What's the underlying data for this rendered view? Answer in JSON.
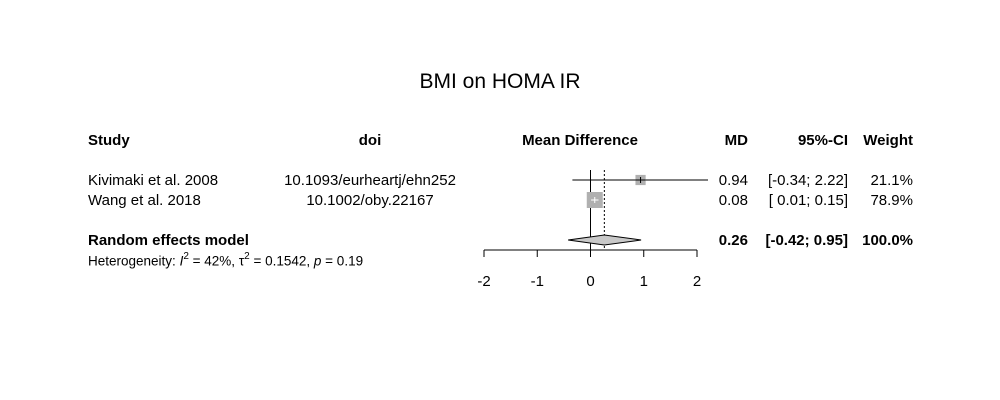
{
  "chart_data": {
    "type": "forest",
    "title": "BMI on HOMA IR",
    "columns": {
      "study": "Study",
      "doi": "doi",
      "effect": "Mean Difference",
      "md": "MD",
      "ci": "95%-CI",
      "weight": "Weight"
    },
    "studies": [
      {
        "study": "Kivimaki et al. 2008",
        "doi": "10.1093/eurheartj/ehn252",
        "md": 0.94,
        "lower": -0.34,
        "upper": 2.22,
        "md_text": "0.94",
        "ci_text": "[-0.34; 2.22]",
        "weight": 21.1,
        "weight_text": "21.1%"
      },
      {
        "study": "Wang et al. 2018",
        "doi": "10.1002/oby.22167",
        "md": 0.08,
        "lower": 0.01,
        "upper": 0.15,
        "md_text": "0.08",
        "ci_text": "[ 0.01; 0.15]",
        "weight": 78.9,
        "weight_text": "78.9%"
      }
    ],
    "pooled": {
      "label": "Random effects model",
      "md": 0.26,
      "lower": -0.42,
      "upper": 0.95,
      "md_text": "0.26",
      "ci_text": "[-0.42; 0.95]",
      "weight_text": "100.0%"
    },
    "heterogeneity": {
      "prefix": "Heterogeneity: ",
      "i2_symbol": "I",
      "i2_value": " = 42%, ",
      "tau2_symbol": "τ",
      "tau2_value": " = 0.1542, ",
      "p_symbol": "p",
      "p_value": " = 0.19"
    },
    "xaxis": {
      "ticks": [
        -2,
        -1,
        0,
        1,
        2
      ],
      "range": [
        -2,
        2
      ],
      "null_line": 0
    },
    "colors": {
      "box": "#b0b0b0",
      "diamond": "#c8c8c8",
      "line": "#000000"
    }
  }
}
